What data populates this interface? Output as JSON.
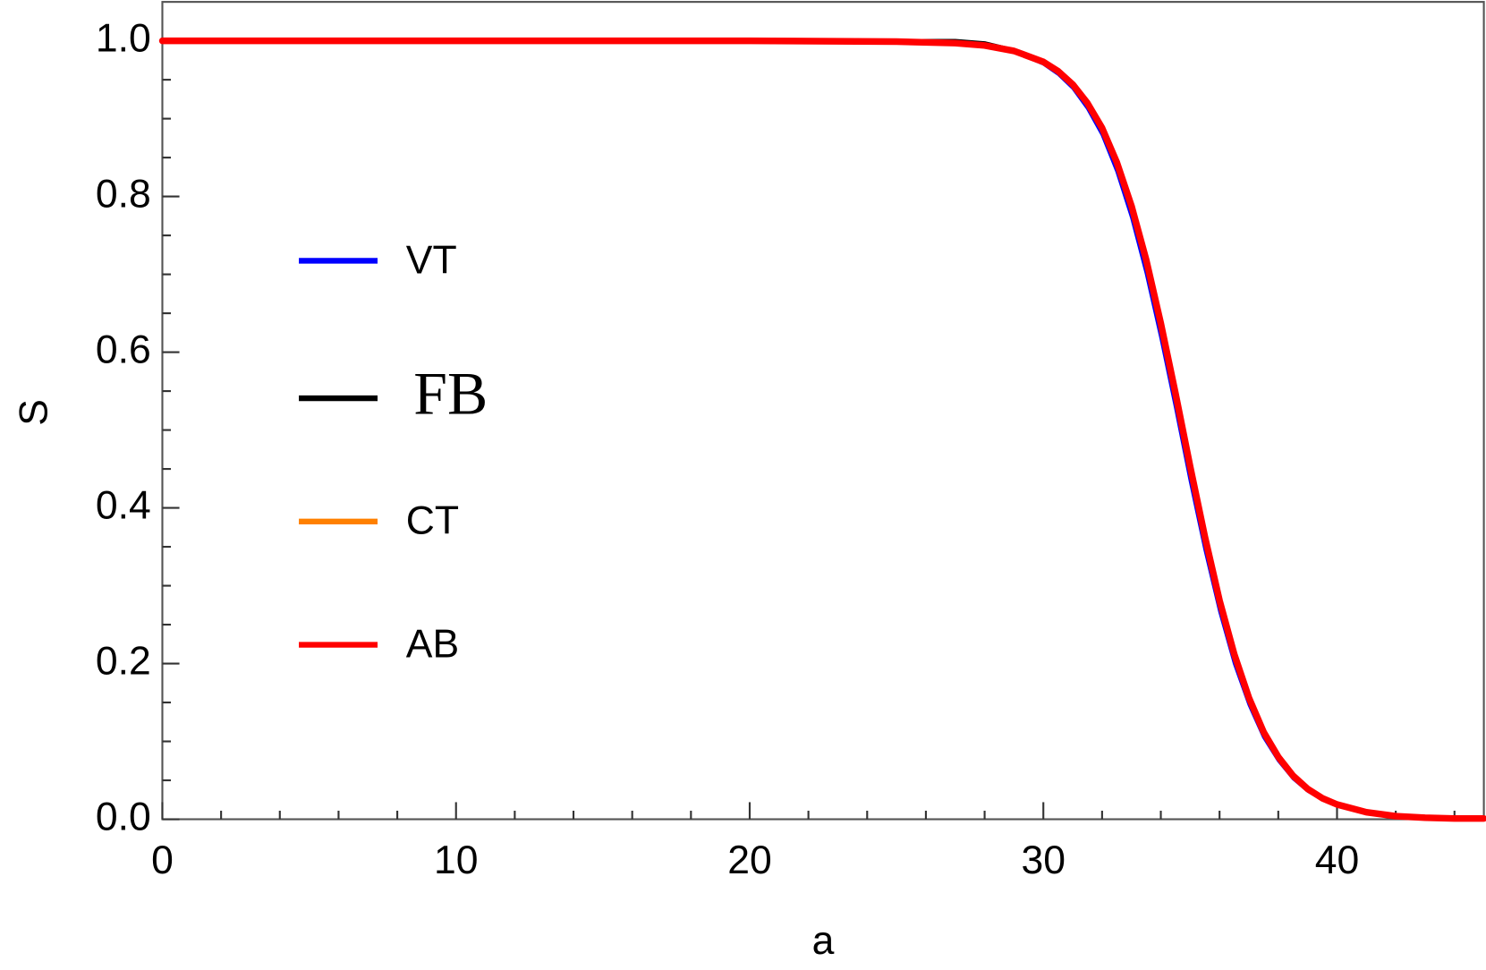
{
  "chart_data": {
    "type": "line",
    "x_label": "a",
    "y_label": "S",
    "x": [
      0,
      5,
      10,
      15,
      20,
      25,
      27,
      28,
      29,
      30,
      30.5,
      31,
      31.5,
      32,
      32.5,
      33,
      33.5,
      34,
      34.5,
      35,
      35.5,
      36,
      36.5,
      37,
      37.5,
      38,
      38.5,
      39,
      39.5,
      40,
      41,
      42,
      43,
      44,
      45
    ],
    "series": [
      {
        "name": "VT",
        "color": "#0000ff",
        "values": [
          1.0,
          1.0,
          1.0,
          1.0,
          1.0,
          0.999,
          0.997,
          0.993,
          0.986,
          0.97,
          0.957,
          0.939,
          0.913,
          0.879,
          0.832,
          0.773,
          0.701,
          0.618,
          0.528,
          0.434,
          0.346,
          0.267,
          0.2,
          0.147,
          0.105,
          0.075,
          0.052,
          0.036,
          0.025,
          0.017,
          0.008,
          0.004,
          0.002,
          0.001,
          0.0
        ]
      },
      {
        "name": "FB",
        "color": "#000000",
        "values": [
          1.0,
          1.0,
          1.0,
          1.0,
          1.0,
          1.0,
          1.0,
          0.997,
          0.988,
          0.973,
          0.961,
          0.944,
          0.92,
          0.888,
          0.844,
          0.788,
          0.719,
          0.637,
          0.547,
          0.453,
          0.363,
          0.281,
          0.212,
          0.156,
          0.112,
          0.08,
          0.056,
          0.039,
          0.027,
          0.019,
          0.009,
          0.004,
          0.002,
          0.001,
          0.001
        ]
      },
      {
        "name": "CT",
        "color": "#ff8000",
        "values": [
          1.0,
          1.0,
          1.0,
          1.0,
          1.0,
          0.999,
          0.997,
          0.994,
          0.987,
          0.973,
          0.961,
          0.944,
          0.92,
          0.888,
          0.844,
          0.788,
          0.719,
          0.637,
          0.547,
          0.453,
          0.363,
          0.281,
          0.212,
          0.156,
          0.112,
          0.08,
          0.056,
          0.039,
          0.027,
          0.019,
          0.009,
          0.004,
          0.002,
          0.001,
          0.001
        ]
      },
      {
        "name": "AB",
        "color": "#ff0000",
        "values": [
          1.0,
          1.0,
          1.0,
          1.0,
          1.0,
          0.999,
          0.997,
          0.994,
          0.987,
          0.973,
          0.961,
          0.944,
          0.92,
          0.888,
          0.844,
          0.788,
          0.719,
          0.637,
          0.547,
          0.453,
          0.363,
          0.281,
          0.212,
          0.156,
          0.112,
          0.08,
          0.056,
          0.039,
          0.027,
          0.019,
          0.009,
          0.004,
          0.002,
          0.001,
          0.001
        ]
      }
    ],
    "xlim": [
      0,
      45
    ],
    "ylim": [
      0,
      1.05
    ],
    "xticks": [
      0,
      10,
      20,
      30,
      40
    ],
    "yticks": [
      {
        "value": 0,
        "label": "0.0"
      },
      {
        "value": 0.2,
        "label": "0.2"
      },
      {
        "value": 0.4,
        "label": "0.4"
      },
      {
        "value": 0.6,
        "label": "0.6"
      },
      {
        "value": 0.8,
        "label": "0.8"
      },
      {
        "value": 1.0,
        "label": "1.0"
      }
    ],
    "x_minor_ticks": [
      2,
      4,
      6,
      8,
      12,
      14,
      16,
      18,
      22,
      24,
      26,
      28,
      32,
      34,
      36,
      38,
      42,
      44
    ],
    "y_minor_ticks": [
      0.05,
      0.1,
      0.15,
      0.25,
      0.3,
      0.35,
      0.45,
      0.5,
      0.55,
      0.65,
      0.7,
      0.75,
      0.85,
      0.9,
      0.95
    ],
    "legend": "center left",
    "grid": false
  }
}
